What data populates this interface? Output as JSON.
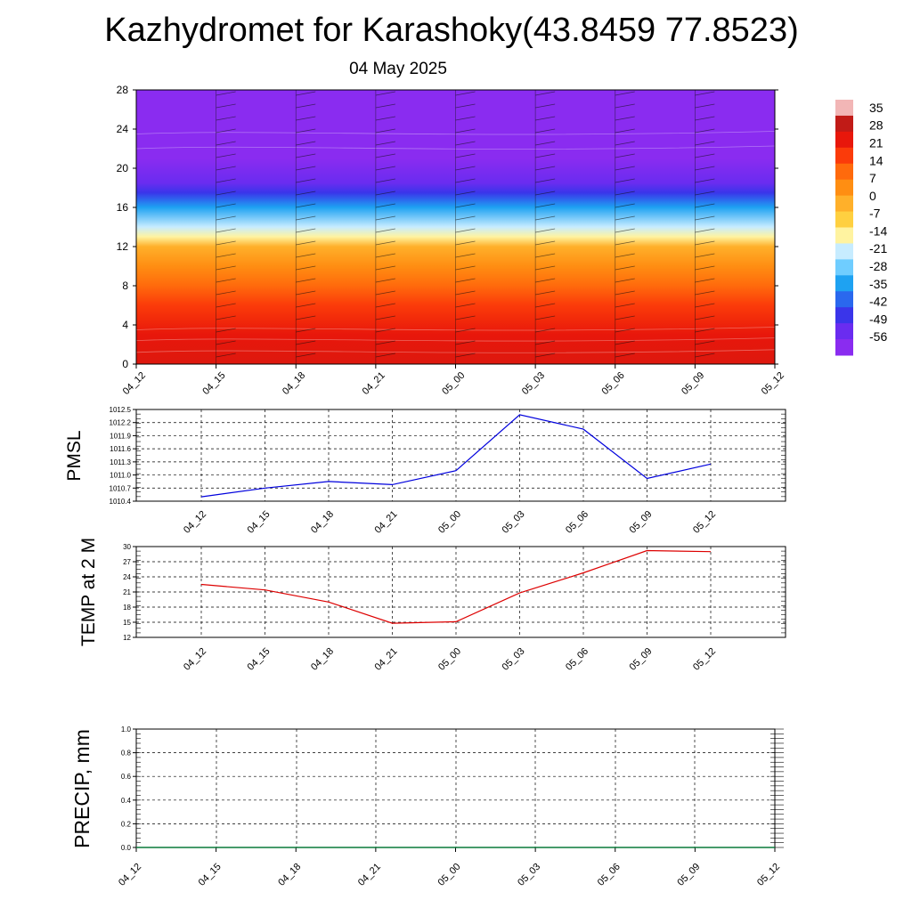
{
  "header": {
    "title": "Kazhydromet for Karashoky(43.8459 77.8523)",
    "date": "04 May 2025"
  },
  "colorbar": {
    "labels": [
      "35",
      "28",
      "21",
      "14",
      "7",
      "0",
      "-7",
      "-14",
      "-21",
      "-28",
      "-35",
      "-42",
      "-49",
      "-56"
    ],
    "colors": [
      "#f2b6b6",
      "#c11b17",
      "#e8170b",
      "#fb3b0a",
      "#ff6a0c",
      "#ff8e12",
      "#ffb02a",
      "#ffd040",
      "#fff3a0",
      "#c7ecff",
      "#6fcdff",
      "#1ea2f2",
      "#2a68ee",
      "#3a35ea",
      "#6a2cf0",
      "#8a2cf0"
    ]
  },
  "chart_data": [
    {
      "type": "heatmap",
      "title": "",
      "x_ticks": [
        "04_12",
        "04_15",
        "04_18",
        "04_21",
        "05_00",
        "05_03",
        "05_06",
        "05_09",
        "05_12"
      ],
      "y_ticks": [
        0,
        4,
        8,
        12,
        16,
        20,
        24,
        28
      ],
      "ylim": [
        0,
        28
      ],
      "variable_range": [
        -56,
        35
      ],
      "bands": [
        {
          "y": 0,
          "value": 30
        },
        {
          "y": 3,
          "value": 28
        },
        {
          "y": 6,
          "value": 21
        },
        {
          "y": 8,
          "value": 14
        },
        {
          "y": 10,
          "value": 7
        },
        {
          "y": 12,
          "value": 0
        },
        {
          "y": 13,
          "value": -14
        },
        {
          "y": 14,
          "value": -21
        },
        {
          "y": 16,
          "value": -35
        },
        {
          "y": 17.5,
          "value": -49
        },
        {
          "y": 18.5,
          "value": -56
        },
        {
          "y": 21,
          "value": -60
        },
        {
          "y": 28,
          "value": -60
        }
      ]
    },
    {
      "type": "line",
      "ylabel": "PMSL",
      "categories": [
        "04_12",
        "04_15",
        "04_18",
        "04_21",
        "05_00",
        "05_03",
        "05_06",
        "05_09",
        "05_12"
      ],
      "y_ticks": [
        "1010.4",
        "1010.7",
        "1011.0",
        "1011.3",
        "1011.6",
        "1011.9",
        "1012.2",
        "1012.5"
      ],
      "ylim": [
        1010.4,
        1012.5
      ],
      "series": [
        {
          "color": "#0000dd",
          "values": [
            1010.5,
            1010.7,
            1010.85,
            1010.78,
            1011.1,
            1012.38,
            1012.05,
            1010.92,
            1011.25
          ]
        }
      ]
    },
    {
      "type": "line",
      "ylabel": "TEMP at 2 M",
      "categories": [
        "04_12",
        "04_15",
        "04_18",
        "04_21",
        "05_00",
        "05_03",
        "05_06",
        "05_09",
        "05_12"
      ],
      "y_ticks": [
        "12",
        "15",
        "18",
        "21",
        "24",
        "27",
        "30"
      ],
      "ylim": [
        12,
        30
      ],
      "series": [
        {
          "color": "#dd0000",
          "values": [
            22.5,
            21.4,
            19,
            14.8,
            15.1,
            20.8,
            24.8,
            29.2,
            29
          ]
        }
      ]
    },
    {
      "type": "line",
      "ylabel": "PRECIP, mm",
      "categories": [
        "04_12",
        "04_15",
        "04_18",
        "04_21",
        "05_00",
        "05_03",
        "05_06",
        "05_09",
        "05_12"
      ],
      "y_ticks": [
        "0.0",
        "0.2",
        "0.4",
        "0.6",
        "0.8",
        "1.0"
      ],
      "ylim": [
        0,
        1
      ],
      "series": [
        {
          "color": "#0a7a3a",
          "values": [
            0,
            0,
            0,
            0,
            0,
            0,
            0,
            0,
            0
          ]
        }
      ]
    }
  ]
}
